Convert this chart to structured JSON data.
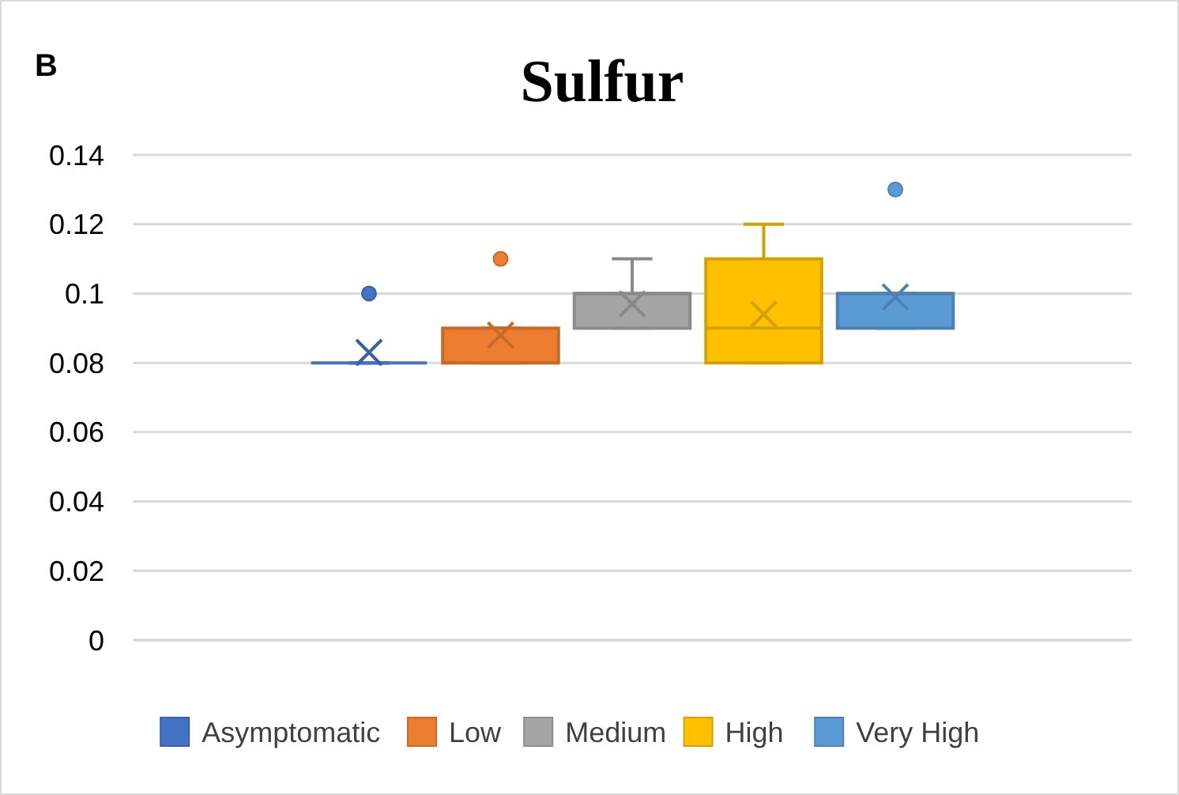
{
  "chart_data": {
    "type": "box",
    "title": "Sulfur",
    "annotations": [
      "B"
    ],
    "categories": [
      null
    ],
    "series": [
      {
        "name": "Asymptomatic",
        "color": "#4472c4",
        "boxes": [
          {
            "low": 0.08,
            "q1": 0.08,
            "median": 0.08,
            "q3": 0.08,
            "high": 0.08,
            "mean": 0.083,
            "outliers": [
              0.1
            ]
          }
        ]
      },
      {
        "name": "Low",
        "color": "#ed7d31",
        "boxes": [
          {
            "low": 0.08,
            "q1": 0.08,
            "median": 0.08,
            "q3": 0.09,
            "high": 0.09,
            "mean": 0.088,
            "outliers": [
              0.11
            ]
          }
        ]
      },
      {
        "name": "Medium",
        "color": "#a5a5a5",
        "boxes": [
          {
            "low": 0.09,
            "q1": 0.09,
            "median": 0.1,
            "q3": 0.1,
            "high": 0.11,
            "mean": 0.097
          }
        ]
      },
      {
        "name": "High",
        "color": "#ffc000",
        "boxes": [
          {
            "low": 0.08,
            "q1": 0.08,
            "median": 0.09,
            "q3": 0.11,
            "high": 0.12,
            "mean": 0.094
          }
        ]
      },
      {
        "name": "Very High",
        "color": "#5b9bd5",
        "boxes": [
          {
            "low": 0.09,
            "q1": 0.09,
            "median": 0.1,
            "q3": 0.1,
            "high": 0.1,
            "mean": 0.099,
            "outliers": [
              0.13
            ]
          }
        ]
      }
    ],
    "ylim": [
      0,
      0.14
    ],
    "yticks": [
      0,
      0.02,
      0.04,
      0.06,
      0.08,
      0.1,
      0.12,
      0.14
    ],
    "grid": true,
    "legend": "bottom"
  }
}
